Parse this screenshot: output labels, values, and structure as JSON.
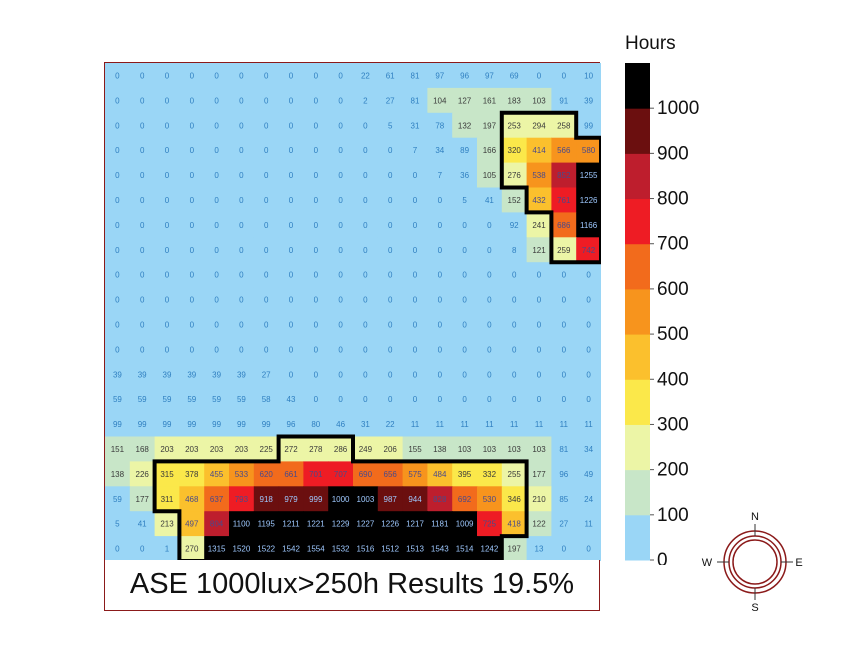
{
  "chart_data": {
    "type": "heatmap",
    "caption": "ASE 1000lux>250h  Results 19.5%",
    "colorbar": {
      "title": "Hours",
      "ticks": [
        0,
        100,
        200,
        300,
        400,
        500,
        600,
        700,
        800,
        900,
        1000
      ],
      "range": [
        0,
        1100
      ],
      "colors": [
        "#9ad6f6",
        "#c8e6c8",
        "#ecf5a6",
        "#fbe84a",
        "#fbc02d",
        "#f7941d",
        "#f26b1c",
        "#ee1c24",
        "#be1e2d",
        "#6b0f0f",
        "#000000"
      ]
    },
    "grid": [
      [
        0,
        0,
        0,
        0,
        0,
        0,
        0,
        0,
        0,
        0,
        22,
        61,
        81,
        97,
        96,
        97,
        69,
        0,
        0,
        10
      ],
      [
        0,
        0,
        0,
        0,
        0,
        0,
        0,
        0,
        0,
        0,
        2,
        27,
        81,
        104,
        127,
        161,
        183,
        103,
        91,
        39
      ],
      [
        0,
        0,
        0,
        0,
        0,
        0,
        0,
        0,
        0,
        0,
        0,
        5,
        31,
        78,
        132,
        197,
        253,
        294,
        258,
        99
      ],
      [
        0,
        0,
        0,
        0,
        0,
        0,
        0,
        0,
        0,
        0,
        0,
        0,
        7,
        34,
        89,
        166,
        320,
        414,
        566,
        580
      ],
      [
        0,
        0,
        0,
        0,
        0,
        0,
        0,
        0,
        0,
        0,
        0,
        0,
        0,
        7,
        36,
        105,
        276,
        538,
        852,
        1255
      ],
      [
        0,
        0,
        0,
        0,
        0,
        0,
        0,
        0,
        0,
        0,
        0,
        0,
        0,
        0,
        5,
        41,
        152,
        432,
        761,
        1226
      ],
      [
        0,
        0,
        0,
        0,
        0,
        0,
        0,
        0,
        0,
        0,
        0,
        0,
        0,
        0,
        0,
        0,
        92,
        241,
        686,
        1166
      ],
      [
        0,
        0,
        0,
        0,
        0,
        0,
        0,
        0,
        0,
        0,
        0,
        0,
        0,
        0,
        0,
        0,
        8,
        121,
        259,
        742
      ],
      [
        0,
        0,
        0,
        0,
        0,
        0,
        0,
        0,
        0,
        0,
        0,
        0,
        0,
        0,
        0,
        0,
        0,
        0,
        0,
        0
      ],
      [
        0,
        0,
        0,
        0,
        0,
        0,
        0,
        0,
        0,
        0,
        0,
        0,
        0,
        0,
        0,
        0,
        0,
        0,
        0,
        0
      ],
      [
        0,
        0,
        0,
        0,
        0,
        0,
        0,
        0,
        0,
        0,
        0,
        0,
        0,
        0,
        0,
        0,
        0,
        0,
        0,
        0
      ],
      [
        0,
        0,
        0,
        0,
        0,
        0,
        0,
        0,
        0,
        0,
        0,
        0,
        0,
        0,
        0,
        0,
        0,
        0,
        0,
        0
      ],
      [
        39,
        39,
        39,
        39,
        39,
        39,
        27,
        0,
        0,
        0,
        0,
        0,
        0,
        0,
        0,
        0,
        0,
        0,
        0,
        0
      ],
      [
        59,
        59,
        59,
        59,
        59,
        59,
        58,
        43,
        0,
        0,
        0,
        0,
        0,
        0,
        0,
        0,
        0,
        0,
        0,
        0
      ],
      [
        99,
        99,
        99,
        99,
        99,
        99,
        99,
        96,
        80,
        46,
        31,
        22,
        11,
        11,
        11,
        11,
        11,
        11,
        11,
        11
      ],
      [
        151,
        168,
        203,
        203,
        203,
        203,
        225,
        272,
        278,
        286,
        249,
        206,
        155,
        138,
        103,
        103,
        103,
        103,
        81,
        34
      ],
      [
        138,
        226,
        315,
        378,
        455,
        533,
        620,
        661,
        701,
        707,
        690,
        656,
        575,
        484,
        395,
        332,
        255,
        177,
        96,
        49
      ],
      [
        59,
        177,
        311,
        468,
        637,
        793,
        918,
        979,
        999,
        1000,
        1003,
        987,
        944,
        828,
        692,
        530,
        346,
        210,
        85,
        24
      ],
      [
        5,
        41,
        213,
        497,
        804,
        1100,
        1195,
        1211,
        1221,
        1229,
        1227,
        1226,
        1217,
        1181,
        1009,
        725,
        418,
        122,
        27,
        11
      ],
      [
        0,
        0,
        1,
        270,
        1315,
        1520,
        1522,
        1542,
        1554,
        1532,
        1516,
        1512,
        1513,
        1543,
        1514,
        1242,
        197,
        13,
        0,
        0
      ]
    ],
    "compass": {
      "north": "N",
      "south": "S",
      "east": "E",
      "west": "W"
    }
  }
}
